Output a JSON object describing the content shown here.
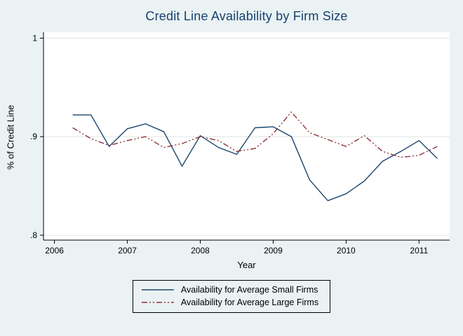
{
  "chart_data": {
    "type": "line",
    "title": "Credit Line Availability by Firm Size",
    "xlabel": "Year",
    "ylabel": "% of Credit Line",
    "xlim": [
      2005.85,
      2011.42
    ],
    "ylim": [
      0.795,
      1.006
    ],
    "xticks": [
      2006,
      2007,
      2008,
      2009,
      2010,
      2011
    ],
    "ytick_values": [
      0.8,
      0.9,
      1.0
    ],
    "ytick_labels": [
      ".8",
      ".9",
      "1"
    ],
    "grid": true,
    "legend_position": "bottom",
    "x": [
      2006.25,
      2006.5,
      2006.75,
      2007.0,
      2007.25,
      2007.5,
      2007.75,
      2008.0,
      2008.25,
      2008.5,
      2008.75,
      2009.0,
      2009.25,
      2009.5,
      2009.75,
      2010.0,
      2010.25,
      2010.5,
      2010.75,
      2011.0,
      2011.25
    ],
    "series": [
      {
        "name": "Availability for Average Small Firms",
        "color": "#1a476f",
        "style": "solid",
        "values": [
          0.922,
          0.922,
          0.89,
          0.908,
          0.913,
          0.905,
          0.87,
          0.901,
          0.889,
          0.882,
          0.909,
          0.91,
          0.9,
          0.856,
          0.835,
          0.842,
          0.855,
          0.875,
          0.885,
          0.896,
          0.878
        ]
      },
      {
        "name": "Availability for Average Large Firms",
        "color": "#90353b",
        "style": "dash-dot-dot",
        "values": [
          0.909,
          0.898,
          0.891,
          0.896,
          0.9,
          0.889,
          0.893,
          0.9,
          0.896,
          0.885,
          0.888,
          0.903,
          0.925,
          0.904,
          0.897,
          0.89,
          0.901,
          0.885,
          0.879,
          0.881,
          0.89
        ]
      }
    ],
    "colors": {
      "title": "#17416f",
      "axis": "#000000",
      "grid": "#dfe6e6",
      "plot_bg": "#ffffff",
      "page_bg": "#eaf2f3",
      "legend_border": "#000000"
    }
  }
}
